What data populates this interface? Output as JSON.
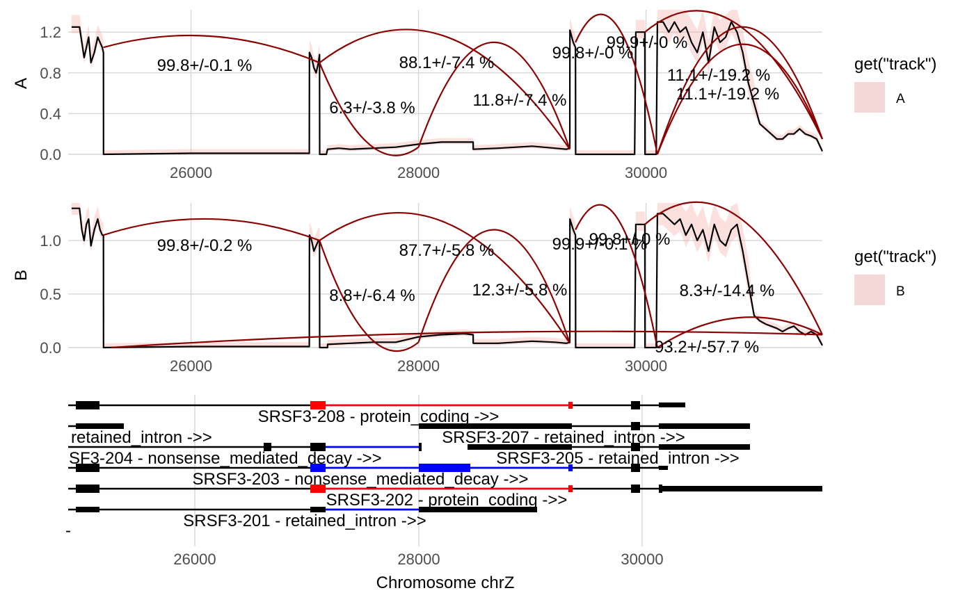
{
  "colors": {
    "coverage": "#000000",
    "ribbon": "#f4a6a0",
    "junction": "#8b0000",
    "grid": "#d6d6d6",
    "legend_fill": "#f4d7d7",
    "transcript_line": "#000000",
    "protein_coding": "#ff0000",
    "nmd": "#0000ff"
  },
  "chart_data": [
    {
      "type": "line",
      "panel": "A",
      "ylabel": "A",
      "xlabel": "",
      "xlim": [
        24920,
        31550
      ],
      "ylim": [
        0,
        1.42
      ],
      "x_ticks": [
        26000,
        28000,
        30000
      ],
      "x_tick_labels": [
        "26000",
        "28000",
        "30000"
      ],
      "y_ticks": [
        0,
        0.4,
        0.8,
        1.2
      ],
      "y_tick_labels": [
        "0.0",
        "0.4",
        "0.8",
        "1.2"
      ],
      "grid": true,
      "legend": {
        "position": "right",
        "title": "get(\"track\")",
        "entries": [
          "A"
        ]
      },
      "coverage": {
        "x": [
          24950,
          25020,
          25040,
          25060,
          25080,
          25100,
          25120,
          25150,
          25180,
          25200,
          25220,
          25230,
          25231,
          26000,
          27000,
          27040,
          27041,
          27060,
          27080,
          27100,
          27120,
          27130,
          27131,
          27150,
          27170,
          27190,
          27200,
          27201,
          27300,
          27400,
          27600,
          27800,
          28000,
          28200,
          28400,
          28480,
          28481,
          28700,
          29000,
          29200,
          29300,
          29330,
          29331,
          29360,
          29380,
          29381,
          29900,
          29910,
          29911,
          29980,
          29990,
          29991,
          30090,
          30100,
          30101,
          30150,
          30200,
          30250,
          30300,
          30350,
          30400,
          30450,
          30500,
          30550,
          30600,
          30650,
          30700,
          30750,
          30800,
          30850,
          30900,
          30950,
          31000,
          31050,
          31100,
          31150,
          31200,
          31250,
          31300,
          31350,
          31400,
          31450,
          31500,
          31550
        ],
        "y": [
          1.25,
          1.25,
          1.1,
          0.95,
          1.05,
          1.15,
          0.9,
          1.0,
          1.15,
          1.1,
          1.05,
          1.0,
          0.0,
          0.01,
          0.01,
          0.01,
          1.0,
          0.95,
          0.85,
          0.8,
          0.9,
          0.98,
          0.0,
          0.0,
          0.0,
          0.0,
          0.05,
          0.05,
          0.06,
          0.05,
          0.06,
          0.07,
          0.1,
          0.12,
          0.12,
          0.12,
          0.05,
          0.06,
          0.08,
          0.06,
          0.05,
          0.06,
          1.22,
          1.1,
          1.05,
          0.0,
          0.0,
          1.2,
          1.2,
          1.2,
          1.2,
          0.0,
          0.0,
          1.3,
          1.3,
          1.3,
          1.2,
          1.3,
          1.2,
          1.25,
          1.1,
          1.0,
          1.2,
          0.9,
          1.25,
          1.1,
          1.15,
          1.3,
          1.2,
          1.0,
          0.7,
          0.5,
          0.3,
          0.25,
          0.2,
          0.15,
          0.15,
          0.2,
          0.2,
          0.25,
          0.2,
          0.18,
          0.15,
          0.03
        ]
      },
      "junctions": [
        {
          "start": 25230,
          "end": 27130,
          "peak": 1.16,
          "label": "99.8+/-0.1 %"
        },
        {
          "start": 27130,
          "end": 29330,
          "peak": 1.16,
          "label": "88.1+/-7.4 %"
        },
        {
          "start": 27130,
          "end": 28000,
          "peak": 0.1,
          "label": "6.3+/-3.8 %"
        },
        {
          "start": 28000,
          "end": 29330,
          "peak": 1.1,
          "label": "11.8+/-7.4 %"
        },
        {
          "start": 29380,
          "end": 30100,
          "peak": 1.27,
          "label": "99.8+/-0 %"
        },
        {
          "start": 29990,
          "end": 31550,
          "peak": 1.3,
          "label": "99.9+/-0 %"
        },
        {
          "start": 30100,
          "end": 31550,
          "peak": 1.25,
          "label": "11.1+/-19.2 %"
        },
        {
          "start": 30100,
          "end": 31550,
          "peak": 1.08,
          "label": "11.1+/-19.2 %"
        }
      ]
    },
    {
      "type": "line",
      "panel": "B",
      "ylabel": "B",
      "xlabel": "",
      "xlim": [
        24920,
        31550
      ],
      "ylim": [
        0,
        1.35
      ],
      "x_ticks": [
        26000,
        28000,
        30000
      ],
      "x_tick_labels": [
        "26000",
        "28000",
        "30000"
      ],
      "y_ticks": [
        0,
        0.5,
        1.0
      ],
      "y_tick_labels": [
        "0.0",
        "0.5",
        "1.0"
      ],
      "grid": true,
      "legend": {
        "position": "right",
        "title": "get(\"track\")",
        "entries": [
          "B"
        ]
      },
      "coverage": {
        "x": [
          24950,
          25020,
          25040,
          25060,
          25080,
          25100,
          25120,
          25150,
          25180,
          25200,
          25220,
          25230,
          25231,
          26000,
          27000,
          27040,
          27041,
          27060,
          27080,
          27100,
          27120,
          27130,
          27131,
          27200,
          27201,
          27400,
          27600,
          27800,
          28000,
          28200,
          28400,
          28480,
          28481,
          28700,
          29000,
          29200,
          29300,
          29330,
          29331,
          29360,
          29380,
          29381,
          29900,
          29910,
          29911,
          29980,
          29990,
          29991,
          30090,
          30100,
          30101,
          30150,
          30200,
          30250,
          30300,
          30350,
          30400,
          30450,
          30500,
          30550,
          30600,
          30650,
          30700,
          30750,
          30800,
          30850,
          30900,
          30950,
          31000,
          31050,
          31100,
          31150,
          31200,
          31250,
          31300,
          31350,
          31400,
          31450,
          31500,
          31550
        ],
        "y": [
          1.3,
          1.3,
          1.1,
          1.0,
          1.15,
          1.2,
          0.95,
          1.1,
          1.2,
          1.1,
          1.05,
          1.05,
          0.0,
          0.01,
          0.01,
          0.01,
          1.05,
          1.0,
          0.9,
          0.95,
          1.0,
          1.0,
          0.0,
          0.0,
          0.03,
          0.04,
          0.05,
          0.05,
          0.1,
          0.12,
          0.13,
          0.12,
          0.04,
          0.04,
          0.06,
          0.05,
          0.04,
          0.05,
          1.2,
          1.1,
          1.05,
          0.0,
          0.0,
          1.15,
          1.15,
          1.15,
          1.15,
          0.0,
          0.0,
          1.25,
          1.25,
          1.25,
          1.2,
          1.15,
          1.2,
          1.05,
          1.15,
          1.0,
          1.1,
          0.9,
          1.15,
          1.0,
          0.95,
          1.1,
          1.15,
          0.9,
          0.6,
          0.3,
          0.25,
          0.22,
          0.2,
          0.18,
          0.15,
          0.18,
          0.2,
          0.15,
          0.12,
          0.15,
          0.12,
          0.02
        ]
      },
      "junctions": [
        {
          "start": 25230,
          "end": 27130,
          "peak": 1.2,
          "label": "99.8+/-0.2 %"
        },
        {
          "start": 27130,
          "end": 29330,
          "peak": 1.17,
          "label": "87.7+/-5.8 %"
        },
        {
          "start": 27130,
          "end": 28000,
          "peak": 0.1,
          "label": "8.8+/-6.4 %"
        },
        {
          "start": 28000,
          "end": 29330,
          "peak": 1.1,
          "label": "12.3+/-5.8 %"
        },
        {
          "start": 29380,
          "end": 30100,
          "peak": 1.22,
          "label": "99.9+/-0.1 %"
        },
        {
          "start": 29990,
          "end": 31550,
          "peak": 1.25,
          "label": "99.8+/-0 %"
        },
        {
          "start": 30100,
          "end": 31550,
          "peak": 0.28,
          "label": "8.3+/-14.4 %"
        },
        {
          "start": 25300,
          "end": 31550,
          "peak": 0.14,
          "label": "93.2+/-57.7 %"
        }
      ]
    }
  ],
  "transcripts": {
    "xlabel": "Chromosome chrZ",
    "x_tick_labels": [
      "26000",
      "28000",
      "30000"
    ],
    "rows": [
      {
        "label": "SRSF3-208 - protein_coding  ->>"
      },
      {
        "label": "retained_intron  ->>"
      },
      {
        "label": "SRSF3-207 - retained_intron  ->>"
      },
      {
        "label": "SF3-204 - nonsense_mediated_decay  ->>"
      },
      {
        "label": "SRSF3-205 - retained_intron  ->>"
      },
      {
        "label": "SRSF3-203 - nonsense_mediated_decay  ->>"
      },
      {
        "label": "SRSF3-202 - protein_coding  ->>"
      },
      {
        "label": "SRSF3-201 - retained_intron  ->>"
      },
      {
        "label": "-"
      }
    ]
  }
}
